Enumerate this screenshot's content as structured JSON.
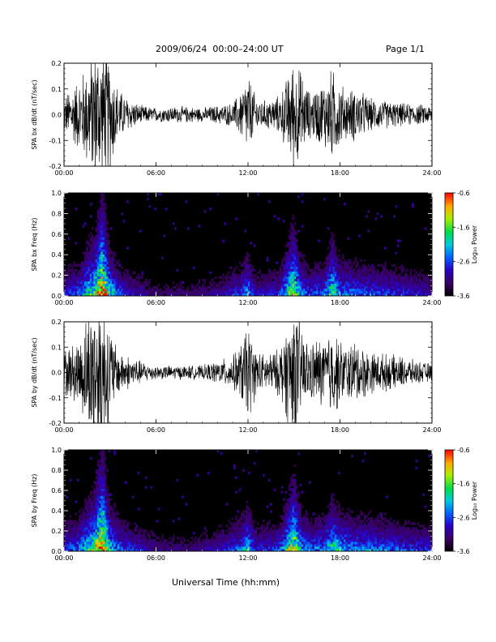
{
  "header": {
    "title": "2009/06/24  00:00–24:00 UT",
    "page": "Page 1/1"
  },
  "xaxis_title": "Universal Time (hh:mm)",
  "chart_data": [
    {
      "type": "line",
      "ylabel": "SPA bx dB/dt (nT/sec)",
      "xlim": [
        0,
        24
      ],
      "ylim": [
        -0.2,
        0.2
      ],
      "x_ticks": [
        "00:00",
        "06:00",
        "12:00",
        "18:00",
        "24:00"
      ],
      "y_ticks": [
        "-0.2",
        "-0.1",
        "0.0",
        "0.1",
        "0.2"
      ],
      "y_tick_values": [
        -0.2,
        -0.1,
        0.0,
        0.1,
        0.2
      ],
      "amplitude_envelope": {
        "hours": [
          0,
          0.5,
          1,
          1.5,
          2,
          2.5,
          3,
          3.5,
          4,
          5,
          6,
          7,
          8,
          9,
          10,
          11,
          11.5,
          12,
          12.5,
          13,
          14,
          14.5,
          15,
          15.5,
          16,
          16.5,
          17,
          17.5,
          18,
          18.5,
          19,
          20,
          21,
          22,
          23,
          24
        ],
        "amplitude": [
          0.08,
          0.12,
          0.16,
          0.22,
          0.3,
          0.3,
          0.25,
          0.12,
          0.08,
          0.04,
          0.03,
          0.035,
          0.035,
          0.03,
          0.04,
          0.05,
          0.1,
          0.18,
          0.08,
          0.06,
          0.08,
          0.15,
          0.25,
          0.18,
          0.1,
          0.12,
          0.15,
          0.2,
          0.14,
          0.1,
          0.12,
          0.07,
          0.06,
          0.05,
          0.045,
          0.04
        ]
      }
    },
    {
      "type": "heatmap",
      "ylabel": "SPA bx Freq (Hz)",
      "xlim": [
        0,
        24
      ],
      "ylim": [
        0,
        1.0
      ],
      "x_ticks": [
        "00:00",
        "06:00",
        "12:00",
        "18:00",
        "24:00"
      ],
      "y_ticks": [
        "0.0",
        "0.2",
        "0.4",
        "0.6",
        "0.8",
        "1.0"
      ],
      "y_tick_values": [
        0.0,
        0.2,
        0.4,
        0.6,
        0.8,
        1.0
      ],
      "colorbar": {
        "label": "Log₁₀ Power",
        "range": [
          -3.6,
          -0.6
        ],
        "ticks": [
          "-0.6",
          "-1.6",
          "-2.6",
          "-3.6"
        ],
        "tick_values": [
          -0.6,
          -1.6,
          -2.6,
          -3.6
        ]
      },
      "activity": {
        "hours": [
          0,
          1,
          1.5,
          2,
          2.5,
          3,
          3.5,
          4,
          6,
          8,
          10,
          11.5,
          12,
          12.5,
          14,
          14.5,
          15,
          15.5,
          16,
          17,
          17.5,
          18,
          19,
          21,
          24
        ],
        "level": [
          0.3,
          0.4,
          0.6,
          0.7,
          1.0,
          0.6,
          0.4,
          0.3,
          0.15,
          0.15,
          0.2,
          0.35,
          0.5,
          0.25,
          0.3,
          0.6,
          0.8,
          0.45,
          0.35,
          0.4,
          0.7,
          0.45,
          0.4,
          0.35,
          0.25
        ]
      }
    },
    {
      "type": "line",
      "ylabel": "SPA by dB/dt (nT/sec)",
      "xlim": [
        0,
        24
      ],
      "ylim": [
        -0.2,
        0.2
      ],
      "x_ticks": [
        "00:00",
        "06:00",
        "12:00",
        "18:00",
        "24:00"
      ],
      "y_ticks": [
        "-0.2",
        "-0.1",
        "0.0",
        "0.1",
        "0.2"
      ],
      "y_tick_values": [
        -0.2,
        -0.1,
        0.0,
        0.1,
        0.2
      ],
      "amplitude_envelope": {
        "hours": [
          0,
          0.5,
          1,
          1.5,
          2,
          2.5,
          3,
          3.5,
          4,
          5,
          6,
          7,
          8,
          9,
          10,
          11,
          11.5,
          12,
          12.5,
          13,
          14,
          14.5,
          15,
          15.5,
          16,
          16.5,
          17,
          17.5,
          18,
          18.5,
          19,
          20,
          21,
          22,
          23,
          24
        ],
        "amplitude": [
          0.1,
          0.12,
          0.15,
          0.25,
          0.35,
          0.35,
          0.2,
          0.1,
          0.08,
          0.05,
          0.03,
          0.03,
          0.03,
          0.03,
          0.05,
          0.07,
          0.12,
          0.22,
          0.1,
          0.08,
          0.1,
          0.2,
          0.3,
          0.2,
          0.12,
          0.15,
          0.15,
          0.2,
          0.14,
          0.12,
          0.14,
          0.09,
          0.08,
          0.07,
          0.05,
          0.04
        ]
      }
    },
    {
      "type": "heatmap",
      "ylabel": "SPA by Freq (Hz)",
      "xlim": [
        0,
        24
      ],
      "ylim": [
        0,
        1.0
      ],
      "x_ticks": [
        "00:00",
        "06:00",
        "12:00",
        "18:00",
        "24:00"
      ],
      "y_ticks": [
        "0.0",
        "0.2",
        "0.4",
        "0.6",
        "0.8",
        "1.0"
      ],
      "y_tick_values": [
        0.0,
        0.2,
        0.4,
        0.6,
        0.8,
        1.0
      ],
      "colorbar": {
        "label": "Log₁₀ Power",
        "range": [
          -3.6,
          -0.6
        ],
        "ticks": [
          "-0.6",
          "-1.6",
          "-2.6",
          "-3.6"
        ],
        "tick_values": [
          -0.6,
          -1.6,
          -2.6,
          -3.6
        ]
      },
      "activity": {
        "hours": [
          0,
          1,
          1.5,
          2,
          2.5,
          3,
          3.5,
          4,
          6,
          8,
          10,
          11.5,
          12,
          12.5,
          14,
          14.5,
          15,
          15.5,
          16,
          17,
          17.5,
          18,
          19,
          21,
          24
        ],
        "level": [
          0.35,
          0.45,
          0.6,
          0.75,
          1.0,
          0.6,
          0.45,
          0.35,
          0.2,
          0.15,
          0.25,
          0.4,
          0.55,
          0.3,
          0.35,
          0.6,
          0.85,
          0.5,
          0.4,
          0.45,
          0.65,
          0.5,
          0.45,
          0.4,
          0.3
        ]
      }
    }
  ]
}
